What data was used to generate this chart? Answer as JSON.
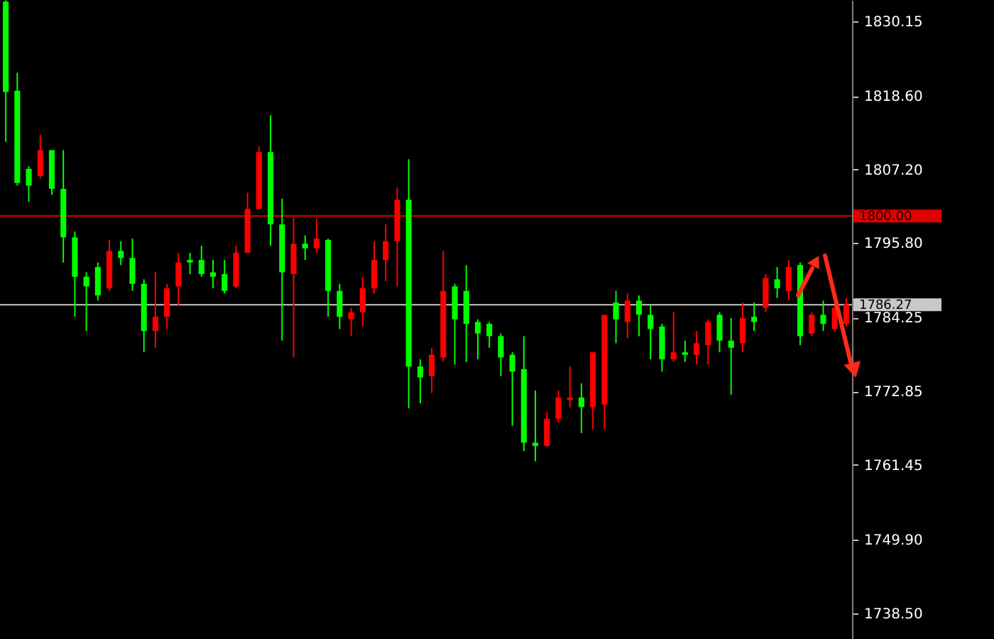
{
  "chart_data": {
    "type": "candlestick",
    "categories": [
      null,
      null,
      null,
      null,
      null,
      null,
      null,
      null,
      null,
      null,
      null,
      null,
      null,
      null,
      null,
      null,
      null,
      null,
      null,
      null,
      null,
      null,
      null,
      null,
      null,
      null,
      null,
      null,
      null,
      null,
      null,
      null,
      null,
      null,
      null,
      null,
      null,
      null,
      null,
      null,
      null,
      null,
      null,
      null,
      null,
      null,
      null,
      null,
      null,
      null,
      null,
      null,
      null,
      null,
      null,
      null,
      null,
      null,
      null,
      null,
      null,
      null,
      null,
      null,
      null,
      null,
      null,
      null,
      null,
      null,
      null,
      null,
      null,
      null
    ],
    "ohlc": [
      [
        1833.2,
        1833.4,
        1811.5,
        1819.2
      ],
      [
        1819.4,
        1822.2,
        1804.7,
        1805.1
      ],
      [
        1807.3,
        1807.7,
        1802.2,
        1804.7
      ],
      [
        1806.2,
        1812.6,
        1805.8,
        1810.2
      ],
      [
        1810.2,
        1810.2,
        1803.3,
        1804.2
      ],
      [
        1804.2,
        1810.2,
        1792.8,
        1796.7
      ],
      [
        1796.7,
        1797.6,
        1784.4,
        1790.6
      ],
      [
        1790.6,
        1791.3,
        1782.2,
        1789.1
      ],
      [
        1792.1,
        1792.8,
        1786.9,
        1787.7
      ],
      [
        1788.8,
        1796.3,
        1788.4,
        1794.6
      ],
      [
        1794.6,
        1796.1,
        1792.4,
        1793.5
      ],
      [
        1793.5,
        1796.5,
        1788.4,
        1789.5
      ],
      [
        1789.5,
        1790.2,
        1778.9,
        1782.2
      ],
      [
        1782.2,
        1791.3,
        1779.6,
        1784.4
      ],
      [
        1784.4,
        1789.5,
        1782.5,
        1788.8
      ],
      [
        1789.1,
        1794.3,
        1786.2,
        1792.8
      ],
      [
        1793.2,
        1794.3,
        1791.0,
        1792.8
      ],
      [
        1793.2,
        1795.4,
        1790.6,
        1791.0
      ],
      [
        1791.3,
        1793.2,
        1788.8,
        1790.6
      ],
      [
        1791.0,
        1793.2,
        1788.0,
        1788.4
      ],
      [
        1789.1,
        1795.4,
        1788.8,
        1794.3
      ],
      [
        1794.3,
        1803.6,
        1794.3,
        1801.1
      ],
      [
        1801.1,
        1810.8,
        1801.1,
        1809.9
      ],
      [
        1809.9,
        1815.6,
        1795.4,
        1798.7
      ],
      [
        1798.7,
        1802.7,
        1780.7,
        1791.3
      ],
      [
        1791.0,
        1799.8,
        1778.1,
        1795.7
      ],
      [
        1795.7,
        1797.0,
        1793.2,
        1795.0
      ],
      [
        1795.0,
        1799.6,
        1794.3,
        1796.5
      ],
      [
        1796.3,
        1796.5,
        1784.4,
        1788.4
      ],
      [
        1788.4,
        1789.5,
        1782.5,
        1784.4
      ],
      [
        1784.0,
        1785.8,
        1781.4,
        1785.1
      ],
      [
        1785.1,
        1790.6,
        1782.9,
        1788.8
      ],
      [
        1788.8,
        1796.1,
        1788.0,
        1793.2
      ],
      [
        1793.2,
        1798.7,
        1789.9,
        1796.1
      ],
      [
        1796.1,
        1804.4,
        1789.1,
        1802.5
      ],
      [
        1802.5,
        1808.8,
        1770.2,
        1776.7
      ],
      [
        1776.7,
        1777.8,
        1771.0,
        1775.0
      ],
      [
        1775.2,
        1779.6,
        1772.6,
        1778.5
      ],
      [
        1778.1,
        1794.6,
        1777.4,
        1788.4
      ],
      [
        1789.1,
        1789.5,
        1777.0,
        1784.0
      ],
      [
        1788.4,
        1792.4,
        1777.4,
        1783.3
      ],
      [
        1783.6,
        1784.0,
        1777.8,
        1781.8
      ],
      [
        1783.3,
        1783.6,
        1779.6,
        1781.4
      ],
      [
        1781.4,
        1781.8,
        1775.2,
        1778.1
      ],
      [
        1778.5,
        1778.9,
        1767.5,
        1775.9
      ],
      [
        1776.3,
        1781.4,
        1763.6,
        1764.9
      ],
      [
        1764.9,
        1773.0,
        1762.0,
        1764.4
      ],
      [
        1764.4,
        1769.7,
        1764.2,
        1768.6
      ],
      [
        1768.6,
        1773.0,
        1768.0,
        1771.9
      ],
      [
        1771.5,
        1776.7,
        1770.4,
        1771.9
      ],
      [
        1771.9,
        1774.1,
        1766.4,
        1770.4
      ],
      [
        1770.4,
        1778.9,
        1766.9,
        1778.9
      ],
      [
        1770.8,
        1784.7,
        1766.9,
        1784.7
      ],
      [
        1786.6,
        1788.4,
        1780.3,
        1784.0
      ],
      [
        1783.6,
        1788.0,
        1781.1,
        1786.9
      ],
      [
        1786.9,
        1787.7,
        1781.4,
        1784.7
      ],
      [
        1784.7,
        1786.2,
        1777.8,
        1782.5
      ],
      [
        1782.9,
        1783.3,
        1775.9,
        1777.8
      ],
      [
        1777.8,
        1785.1,
        1777.4,
        1778.9
      ],
      [
        1778.9,
        1780.7,
        1777.4,
        1778.5
      ],
      [
        1778.5,
        1782.2,
        1777.0,
        1780.3
      ],
      [
        1780.0,
        1784.0,
        1777.0,
        1783.6
      ],
      [
        1784.7,
        1785.1,
        1778.9,
        1780.7
      ],
      [
        1780.7,
        1784.2,
        1772.3,
        1779.6
      ],
      [
        1780.3,
        1786.6,
        1778.9,
        1784.2
      ],
      [
        1784.4,
        1786.6,
        1782.2,
        1783.6
      ],
      [
        1785.8,
        1791.0,
        1785.1,
        1790.4
      ],
      [
        1790.2,
        1792.1,
        1787.3,
        1788.8
      ],
      [
        1788.4,
        1793.2,
        1786.9,
        1792.1
      ],
      [
        1792.4,
        1792.8,
        1780.0,
        1781.4
      ],
      [
        1781.8,
        1785.1,
        1781.4,
        1784.7
      ],
      [
        1784.7,
        1786.9,
        1782.2,
        1783.3
      ],
      [
        1782.5,
        1786.2,
        1782.2,
        1785.8
      ],
      [
        1783.3,
        1787.3,
        1782.9,
        1786.3
      ]
    ],
    "colors": [
      "#00ff00",
      "#00ff00",
      "#00ff00",
      "#ff0000",
      "#00ff00",
      "#00ff00",
      "#00ff00",
      "#00ff00",
      "#00ff00",
      "#ff0000",
      "#00ff00",
      "#00ff00",
      "#00ff00",
      "#ff0000",
      "#ff0000",
      "#ff0000",
      "#00ff00",
      "#00ff00",
      "#00ff00",
      "#00ff00",
      "#ff0000",
      "#ff0000",
      "#ff0000",
      "#00ff00",
      "#00ff00",
      "#ff0000",
      "#00ff00",
      "#ff0000",
      "#00ff00",
      "#00ff00",
      "#ff0000",
      "#ff0000",
      "#ff0000",
      "#ff0000",
      "#ff0000",
      "#00ff00",
      "#00ff00",
      "#ff0000",
      "#ff0000",
      "#00ff00",
      "#00ff00",
      "#00ff00",
      "#00ff00",
      "#00ff00",
      "#00ff00",
      "#00ff00",
      "#00ff00",
      "#ff0000",
      "#ff0000",
      "#ff0000",
      "#00ff00",
      "#ff0000",
      "#ff0000",
      "#00ff00",
      "#ff0000",
      "#00ff00",
      "#00ff00",
      "#00ff00",
      "#ff0000",
      "#00ff00",
      "#ff0000",
      "#ff0000",
      "#00ff00",
      "#00ff00",
      "#ff0000",
      "#00ff00",
      "#ff0000",
      "#00ff00",
      "#ff0000",
      "#00ff00",
      "#ff0000",
      "#00ff00",
      "#ff0000",
      "#ff0000"
    ],
    "ylim": [
      1734.5,
      1833.45
    ],
    "yticks": [
      {
        "value": 1738.5,
        "label": "1738.50"
      },
      {
        "value": 1749.9,
        "label": "1749.90"
      },
      1761.45,
      1772.85,
      1784.25,
      {
        "value": 1795.8,
        "label": "1795.80"
      },
      {
        "value": 1807.2,
        "label": "1807.20"
      },
      {
        "value": 1818.6,
        "label": "1818.60"
      },
      1830.15
    ],
    "tick_labels": "y",
    "grid": false,
    "ref_lines": [
      {
        "axis": "y",
        "value": 1800.0,
        "label": "1800.00",
        "color": "#e00000"
      },
      {
        "axis": "y",
        "value": 1786.27,
        "label": "1786.27",
        "color": "#c8c8c8"
      }
    ]
  }
}
